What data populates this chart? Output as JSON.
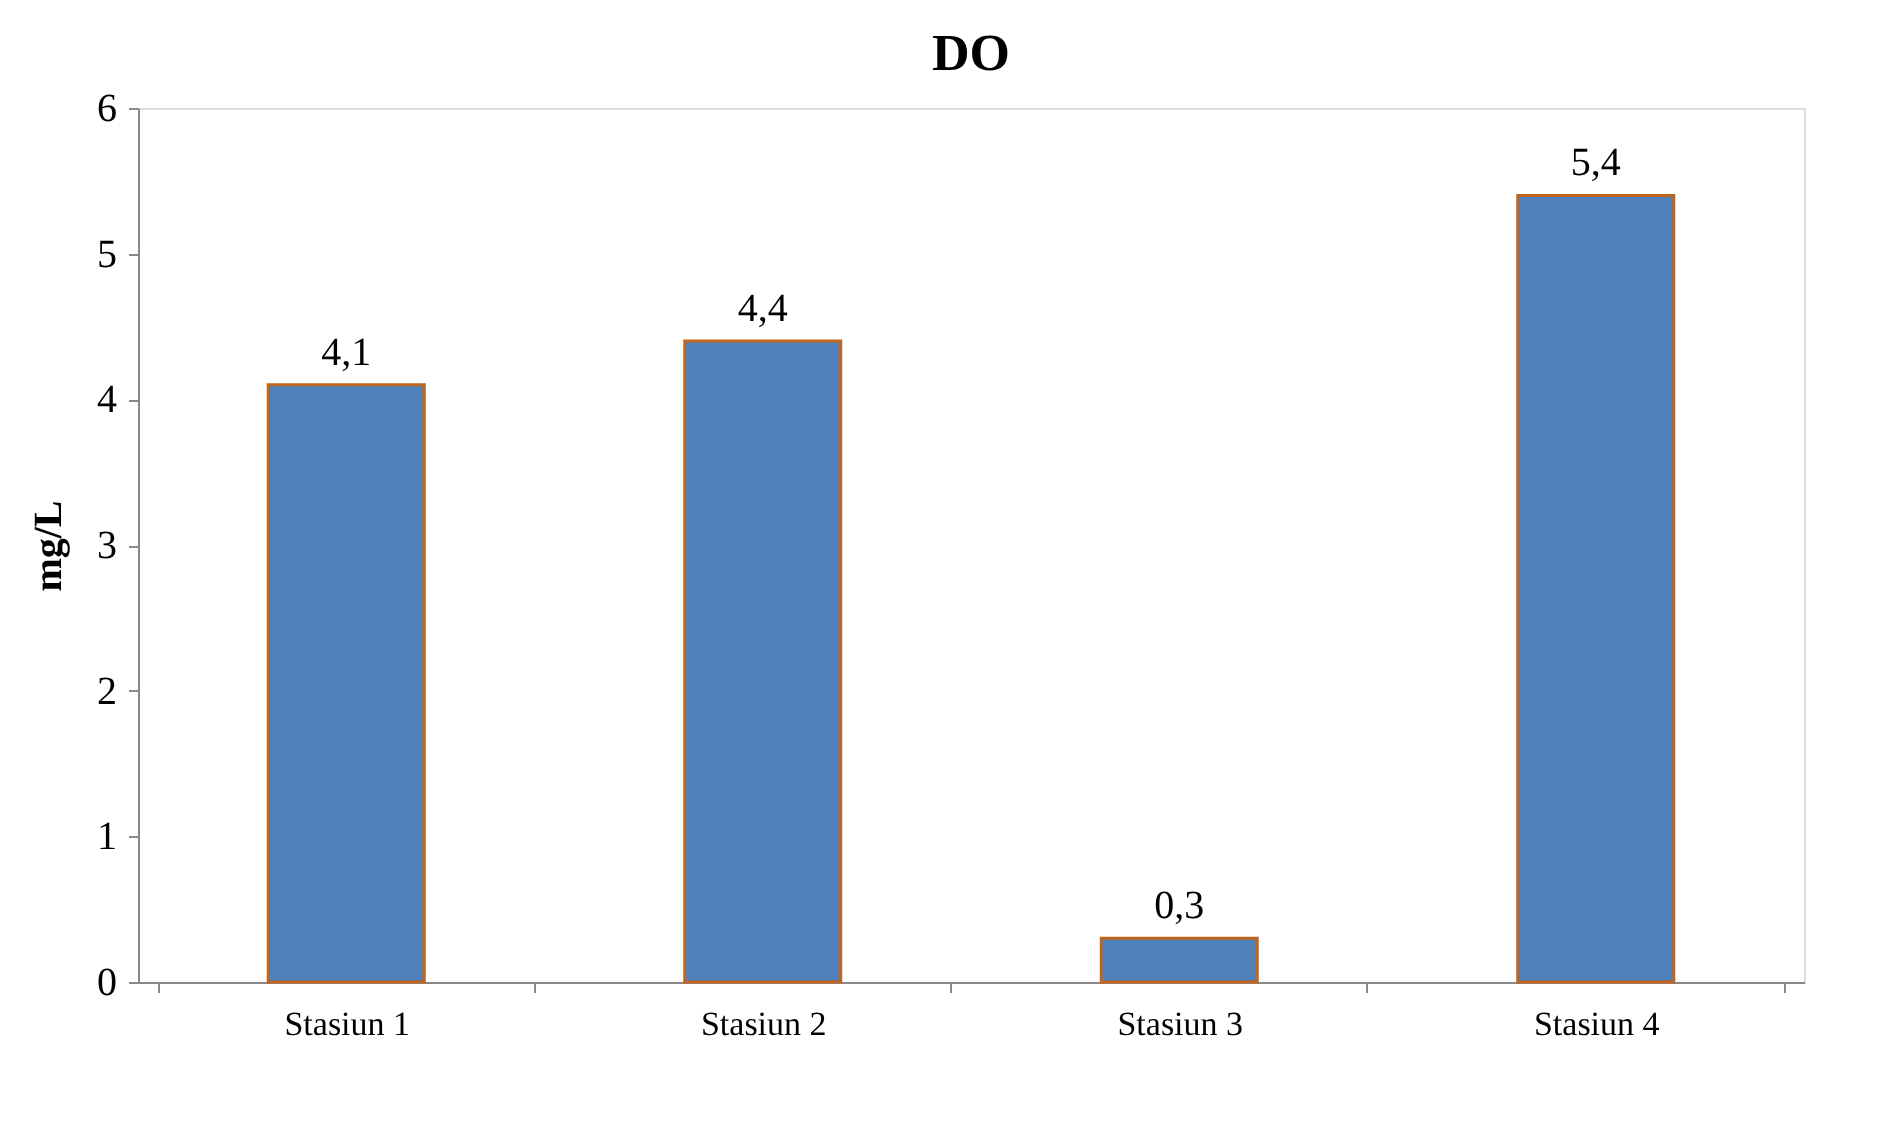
{
  "chart_data": {
    "type": "bar",
    "title": "DO",
    "ylabel": "mg/L",
    "categories": [
      "Stasiun 1",
      "Stasiun 2",
      "Stasiun 3",
      "Stasiun 4"
    ],
    "values": [
      4.1,
      4.4,
      0.3,
      5.4
    ],
    "value_labels": [
      "4,1",
      "4,4",
      "0,3",
      "5,4"
    ],
    "colors": [
      "#4f81bd",
      "#4f81bd",
      "#4f81bd",
      "#4f81bd"
    ],
    "ylim": [
      0,
      6
    ],
    "yticks": [
      0,
      1,
      2,
      3,
      4,
      5,
      6
    ],
    "grid": false
  }
}
